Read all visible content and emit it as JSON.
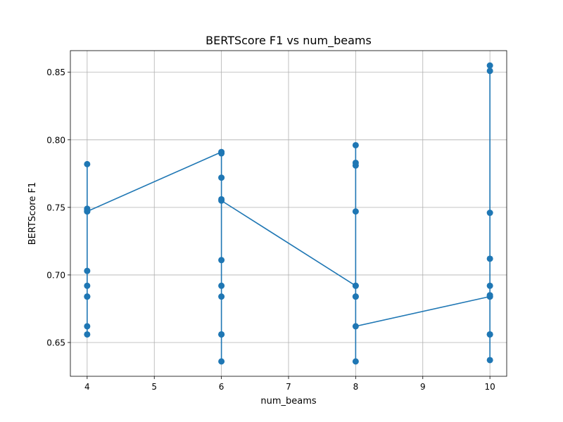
{
  "chart_data": {
    "type": "line",
    "title": "BERTScore F1 vs num_beams",
    "xlabel": "num_beams",
    "ylabel": "BERTScore F1",
    "xlim": [
      3.75,
      10.25
    ],
    "ylim": [
      0.625,
      0.866
    ],
    "xticks": [
      4,
      5,
      6,
      7,
      8,
      9,
      10
    ],
    "yticks": [
      0.65,
      0.7,
      0.75,
      0.8,
      0.85
    ],
    "ytick_labels": [
      "0.65",
      "0.70",
      "0.75",
      "0.80",
      "0.85"
    ],
    "grid": true,
    "color": "#1f77b4",
    "marker": "circle",
    "series": [
      {
        "x": [
          4,
          4,
          4,
          4,
          4,
          4,
          4,
          4,
          4,
          4,
          4,
          6,
          6,
          6,
          6,
          6,
          6,
          6,
          6,
          6,
          6,
          6,
          8,
          8,
          8,
          8,
          8,
          8,
          8,
          8,
          8,
          8,
          10,
          10,
          10,
          10,
          10,
          10,
          10,
          10,
          10,
          10,
          10
        ],
        "y": [
          0.656,
          0.662,
          0.684,
          0.684,
          0.692,
          0.703,
          0.782,
          0.749,
          0.748,
          0.747,
          0.747,
          0.791,
          0.79,
          0.772,
          0.756,
          0.711,
          0.692,
          0.684,
          0.656,
          0.656,
          0.636,
          0.755,
          0.692,
          0.684,
          0.684,
          0.636,
          0.781,
          0.783,
          0.796,
          0.747,
          0.692,
          0.662,
          0.684,
          0.712,
          0.746,
          0.855,
          0.851,
          0.692,
          0.684,
          0.656,
          0.656,
          0.637,
          0.685
        ]
      }
    ]
  }
}
